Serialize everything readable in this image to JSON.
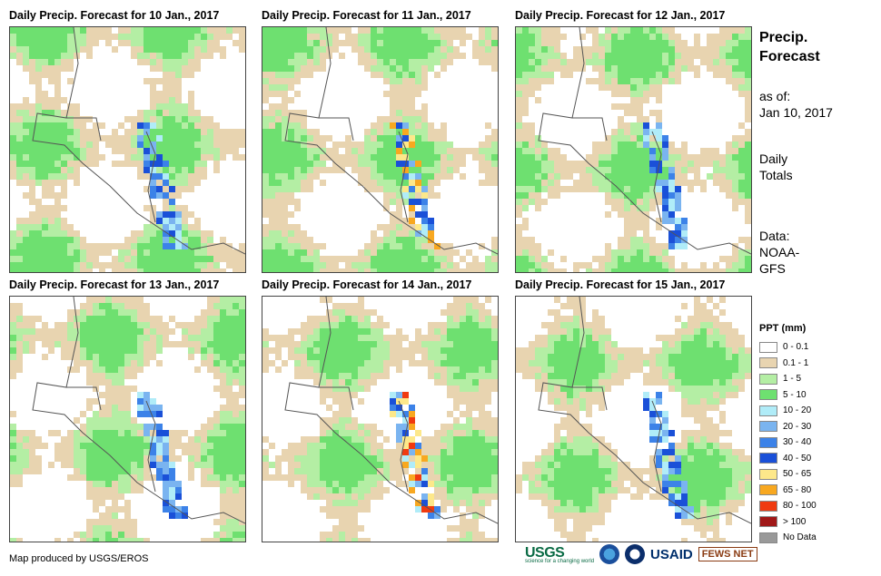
{
  "panels": [
    {
      "title": "Daily Precip. Forecast for 10 Jan., 2017"
    },
    {
      "title": "Daily Precip. Forecast for 11 Jan., 2017"
    },
    {
      "title": "Daily Precip. Forecast for 12 Jan., 2017"
    },
    {
      "title": "Daily Precip. Forecast for 13 Jan., 2017"
    },
    {
      "title": "Daily Precip. Forecast for 14 Jan., 2017"
    },
    {
      "title": "Daily Precip. Forecast for 15 Jan., 2017"
    }
  ],
  "sidebar": {
    "heading_line1": "Precip.",
    "heading_line2": "Forecast",
    "asof_label": "as of:",
    "asof_date": "Jan 10, 2017",
    "totals_line1": "Daily",
    "totals_line2": "Totals",
    "data_label": "Data:",
    "data_source_line1": "NOAA-",
    "data_source_line2": "GFS"
  },
  "legend": {
    "title": "PPT (mm)",
    "items": [
      {
        "label": "0 - 0.1",
        "color": "#ffffff"
      },
      {
        "label": "0.1 - 1",
        "color": "#e8d4b0"
      },
      {
        "label": "1 - 5",
        "color": "#b4eea4"
      },
      {
        "label": "5 - 10",
        "color": "#6ee070"
      },
      {
        "label": "10 - 20",
        "color": "#b0ecf8"
      },
      {
        "label": "20 - 30",
        "color": "#7ab4f0"
      },
      {
        "label": "30 - 40",
        "color": "#3c82e8"
      },
      {
        "label": "40 - 50",
        "color": "#1a50d8"
      },
      {
        "label": "50 - 65",
        "color": "#fde88a"
      },
      {
        "label": "65 - 80",
        "color": "#f8a820"
      },
      {
        "label": "80 - 100",
        "color": "#f03a10"
      },
      {
        "label": "> 100",
        "color": "#a01818"
      },
      {
        "label": "No Data",
        "color": "#999999"
      }
    ]
  },
  "credit": "Map produced by USGS/EROS",
  "logos": {
    "usgs": "USGS",
    "usgs_tagline": "science for a changing world",
    "usaid": "USAID",
    "fews": "FEWS NET"
  }
}
